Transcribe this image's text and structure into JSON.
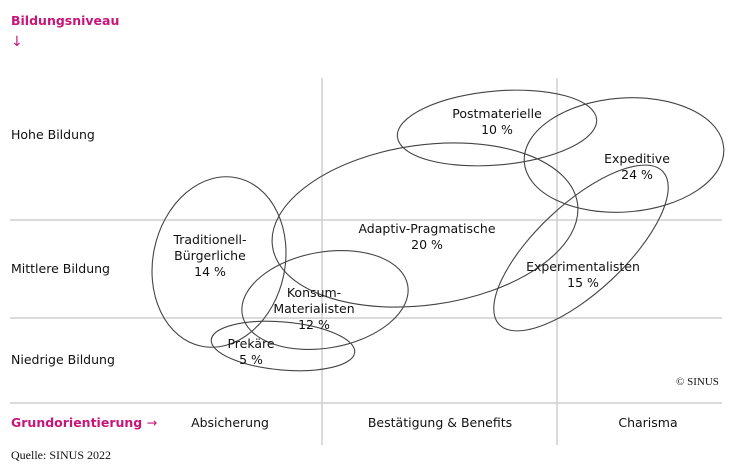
{
  "y_axis": {
    "title": "Bildungsniveau",
    "arrow": "↓",
    "levels": [
      "Hohe Bildung",
      "Mittlere Bildung",
      "Niedrige Bildung"
    ]
  },
  "x_axis": {
    "title": "Grundorientierung",
    "arrow": "→",
    "categories": [
      "Absicherung",
      "Bestätigung & Benefits",
      "Charisma"
    ]
  },
  "milieus": [
    {
      "name": "Postmaterielle",
      "share": "10 %"
    },
    {
      "name": "Expeditive",
      "share": "24 %"
    },
    {
      "name": "Adaptiv-Pragmatische",
      "share": "20 %"
    },
    {
      "name": "Traditionell-\nBürgerliche",
      "share": "14 %"
    },
    {
      "name": "Experimentalisten",
      "share": "15 %"
    },
    {
      "name": "Konsum-\nMaterialisten",
      "share": "12 %"
    },
    {
      "name": "Prekäre",
      "share": "5 %"
    }
  ],
  "copyright": "© SINUS",
  "source": "Quelle: SINUS 2022",
  "colors": {
    "accent": "#c8157a",
    "grid": "#cfcfcf",
    "outline": "#444444"
  }
}
